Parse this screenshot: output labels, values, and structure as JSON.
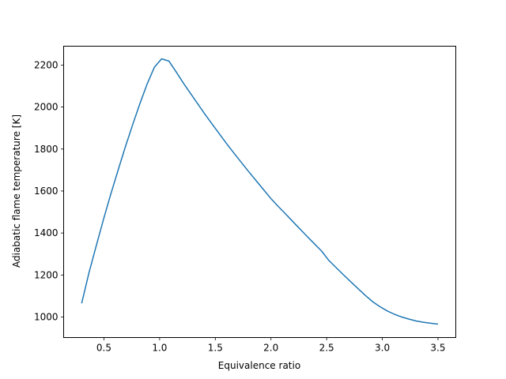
{
  "chart_data": {
    "type": "line",
    "title": "",
    "xlabel": "Equivalence ratio",
    "ylabel": "Adiabatic flame temperature [K]",
    "xlim": [
      0.138,
      3.66
    ],
    "ylim": [
      902,
      2290
    ],
    "grid": false,
    "xticks": [
      0.5,
      1.0,
      1.5,
      2.0,
      2.5,
      3.0,
      3.5
    ],
    "xtick_labels": [
      "0.5",
      "1.0",
      "1.5",
      "2.0",
      "2.5",
      "3.0",
      "3.5"
    ],
    "yticks": [
      1000,
      1200,
      1400,
      1600,
      1800,
      2000,
      2200
    ],
    "ytick_labels": [
      "1000",
      "1200",
      "1400",
      "1600",
      "1800",
      "2000",
      "2200"
    ],
    "series": [
      {
        "color": "#1f77b4",
        "x": [
          0.3,
          0.365,
          0.431,
          0.496,
          0.561,
          0.627,
          0.692,
          0.757,
          0.822,
          0.888,
          0.953,
          1.018,
          1.084,
          1.149,
          1.214,
          1.28,
          1.345,
          1.41,
          1.476,
          1.541,
          1.606,
          1.671,
          1.737,
          1.802,
          1.867,
          1.933,
          1.998,
          2.063,
          2.129,
          2.194,
          2.259,
          2.324,
          2.39,
          2.455,
          2.52,
          2.586,
          2.651,
          2.716,
          2.782,
          2.847,
          2.912,
          2.978,
          3.043,
          3.108,
          3.173,
          3.239,
          3.304,
          3.369,
          3.435,
          3.5
        ],
        "y": [
          1065,
          1210,
          1340,
          1465,
          1585,
          1700,
          1810,
          1915,
          2015,
          2110,
          2190,
          2230,
          2219,
          2167,
          2114,
          2063,
          2013,
          1964,
          1916,
          1869,
          1823,
          1778,
          1734,
          1691,
          1649,
          1607,
          1565,
          1528,
          1492,
          1456,
          1420,
          1384,
          1349,
          1314,
          1269,
          1235,
          1201,
          1168,
          1135,
          1103,
          1073,
          1049,
          1029,
          1013,
          1000,
          990,
          981,
          975,
          970,
          966
        ]
      }
    ]
  }
}
